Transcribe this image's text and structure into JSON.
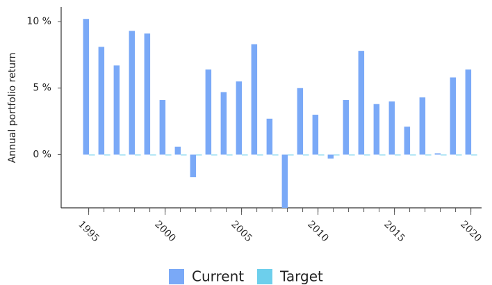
{
  "chart_data": {
    "type": "bar",
    "y_label": "Annual portfolio return",
    "x": [
      1995,
      1996,
      1997,
      1998,
      1999,
      2000,
      2001,
      2002,
      2003,
      2004,
      2005,
      2006,
      2007,
      2008,
      2009,
      2010,
      2011,
      2012,
      2013,
      2014,
      2015,
      2016,
      2017,
      2018,
      2019,
      2020
    ],
    "series": [
      {
        "name": "Current",
        "color": "#7aa9f7",
        "values": [
          10.2,
          8.1,
          6.7,
          9.3,
          9.1,
          4.1,
          0.6,
          -1.7,
          6.4,
          4.7,
          5.5,
          8.3,
          2.7,
          -4.0,
          5.0,
          3.0,
          -0.3,
          4.1,
          7.8,
          3.8,
          4.0,
          2.1,
          4.3,
          0.1,
          5.8,
          6.4
        ]
      },
      {
        "name": "Target",
        "color": "#6dcfec",
        "values": [
          0,
          0,
          0,
          0,
          0,
          0,
          0,
          0,
          0,
          0,
          0,
          0,
          0,
          0,
          0,
          0,
          0,
          0,
          0,
          0,
          0,
          0,
          0,
          0,
          0,
          0
        ]
      }
    ],
    "xlim": [
      1993.2,
      2020.7
    ],
    "xticks": [
      1995,
      2000,
      2005,
      2010,
      2015,
      2020
    ],
    "ylim": [
      -4.0,
      11.1
    ],
    "yticks": [
      {
        "value": 0,
        "label": "0 %"
      },
      {
        "value": 5,
        "label": "5 %"
      },
      {
        "value": 10,
        "label": "10 %"
      }
    ],
    "grid": false
  }
}
